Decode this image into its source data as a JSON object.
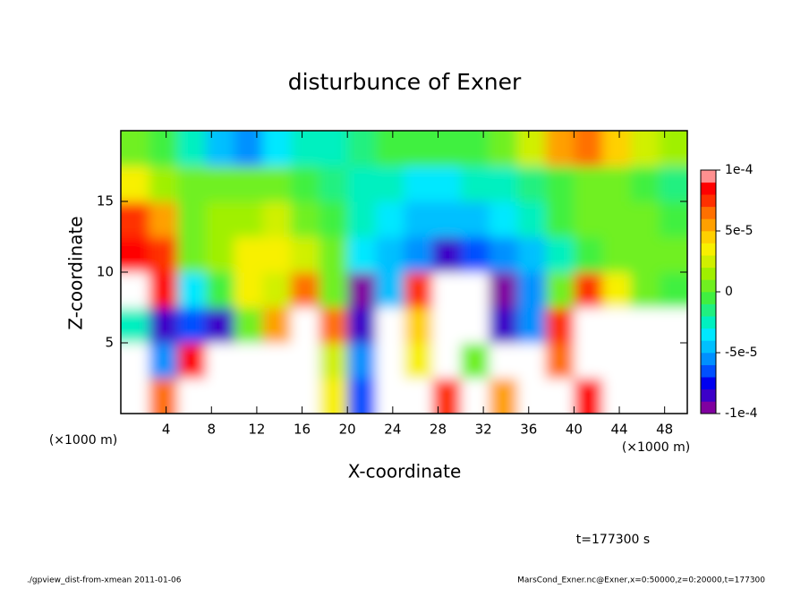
{
  "chart_data": {
    "type": "contour",
    "title": "disturbunce of Exner",
    "xlabel": "X-coordinate",
    "ylabel": "Z-coordinate",
    "xlabel_unit": "(×1000 m)",
    "ylabel_unit": "(×1000 m)",
    "time_label": "t=177300 s",
    "footer_left": "./gpview_dist-from-xmean  2011-01-06",
    "footer_right": "MarsCond_Exner.nc@Exner,x=0:50000,z=0:20000,t=177300",
    "x": [
      1.25,
      3.75,
      6.25,
      8.75,
      11.25,
      13.75,
      16.25,
      18.75,
      21.25,
      23.75,
      26.25,
      28.75,
      31.25,
      33.75,
      36.25,
      38.75,
      41.25,
      43.75,
      46.25,
      48.75
    ],
    "y": [
      1.25,
      3.75,
      6.25,
      8.75,
      11.25,
      13.75,
      16.25,
      18.75
    ],
    "values": [
      [
        0.00015,
        6e-05,
        0.00015,
        0.00015,
        -0.00015,
        0.00015,
        0.00015,
        3e-05,
        -7e-05,
        0.00015,
        0.00015,
        7e-05,
        0.00015,
        5e-05,
        0.00015,
        0.00015,
        8e-05,
        0.00015,
        0.00012,
        -0.00015
      ],
      [
        -0.00015,
        -6e-05,
        8e-05,
        0.00015,
        0.00015,
        0.00015,
        0.00015,
        2e-05,
        -6e-05,
        0.00015,
        3e-05,
        0.00015,
        0,
        0.00015,
        0.00015,
        6e-05,
        0.00015,
        0.00015,
        -0.00015,
        -0.00015
      ],
      [
        -3e-05,
        -8e-05,
        -7e-05,
        -8e-05,
        0,
        5e-05,
        0.00015,
        6e-05,
        -8e-05,
        0.00015,
        4e-05,
        0.00015,
        -0.00011,
        -8e-05,
        -6e-05,
        7e-05,
        0.00015,
        0.00015,
        0.00012,
        -0.00015
      ],
      [
        0.00015,
        8e-05,
        -4e-05,
        -1e-05,
        3e-05,
        2e-05,
        6e-05,
        0,
        -9e-05,
        -5e-05,
        7e-05,
        -0.00011,
        -0.00012,
        -9e-05,
        -6e-05,
        0,
        7e-05,
        3e-05,
        0,
        -1e-05
      ],
      [
        8e-05,
        7e-05,
        0,
        1e-05,
        3e-05,
        3e-05,
        2e-05,
        0,
        -4e-05,
        -5e-05,
        -6e-05,
        -8e-05,
        -7e-05,
        -6e-05,
        -5e-05,
        -3e-05,
        -1e-05,
        0,
        0,
        0
      ],
      [
        7e-05,
        5e-05,
        0,
        1e-05,
        1e-05,
        2e-05,
        0,
        -1e-05,
        -3e-05,
        -4e-05,
        -5e-05,
        -5e-05,
        -5e-05,
        -4e-05,
        -3e-05,
        -1e-05,
        0,
        0,
        0,
        -1e-05
      ],
      [
        3e-05,
        1e-05,
        0,
        0,
        0,
        0,
        -1e-05,
        -2e-05,
        -3e-05,
        -3e-05,
        -4e-05,
        -4e-05,
        -3e-05,
        -3e-05,
        -2e-05,
        -1e-05,
        0,
        0,
        -1e-05,
        -2e-05
      ],
      [
        0,
        -1e-05,
        -3e-05,
        -5e-05,
        -6e-05,
        -4e-05,
        -3e-05,
        -3e-05,
        -2e-05,
        -1e-05,
        -1e-05,
        -1e-05,
        -1e-05,
        0,
        2e-05,
        5e-05,
        6e-05,
        4e-05,
        2e-05,
        1e-05
      ]
    ],
    "xlim": [
      0,
      50
    ],
    "ylim": [
      0,
      20
    ],
    "xticks": [
      4,
      8,
      12,
      16,
      20,
      24,
      28,
      32,
      36,
      40,
      44,
      48
    ],
    "yticks": [
      5,
      10,
      15
    ],
    "clim": [
      -0.0001,
      0.0001
    ],
    "cticks": [
      {
        "value": 0.0001,
        "label": "1e-4"
      },
      {
        "value": 5e-05,
        "label": "5e-5"
      },
      {
        "value": 0,
        "label": "0"
      },
      {
        "value": -5e-05,
        "label": "-5e-5"
      },
      {
        "value": -0.0001,
        "label": "-1e-4"
      }
    ],
    "colors": [
      "#8000a0",
      "#3c00c8",
      "#0000f0",
      "#0050ff",
      "#0090ff",
      "#00c0ff",
      "#00e8ff",
      "#00f0c0",
      "#20f080",
      "#40f040",
      "#70f020",
      "#a0f000",
      "#d0f000",
      "#f8f000",
      "#ffd000",
      "#ffa000",
      "#ff7000",
      "#ff3000",
      "#ff0000",
      "#ff9090"
    ],
    "out_of_range_color": "#ffffff"
  }
}
